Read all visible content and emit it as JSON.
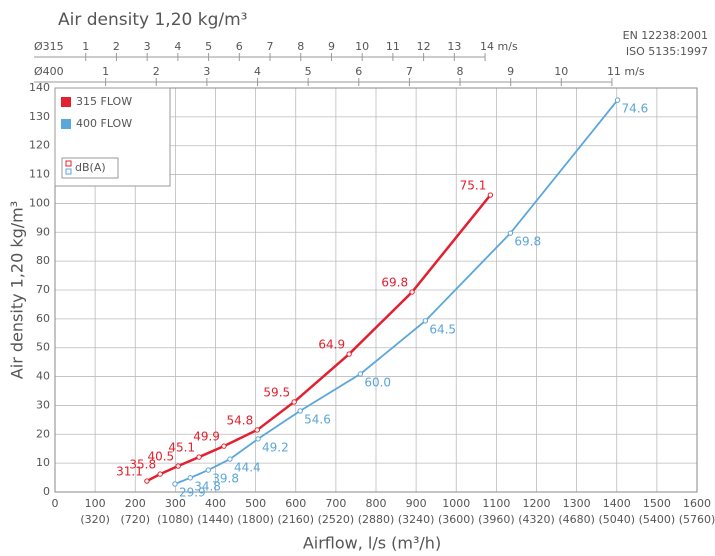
{
  "chart_data": {
    "type": "line",
    "title": "Air density 1,20 kg/m³",
    "standards": [
      "EN 12238:2001",
      "ISO 5135:1997"
    ],
    "ylabel": "Air density 1,20 kg/m³",
    "xlabel": "Airflow, l/s (m³/h)",
    "xlim": [
      0,
      1600
    ],
    "xticks": [
      0,
      100,
      200,
      300,
      400,
      500,
      600,
      700,
      800,
      900,
      1000,
      1100,
      1200,
      1300,
      1400,
      1500,
      1600
    ],
    "xtick_secondary_labels": [
      null,
      "(320)",
      "(720)",
      "(1080)",
      "(1440)",
      "(1800)",
      "(2160)",
      "(2520)",
      "(2880)",
      "(3240)",
      "(3600)",
      "(3960)",
      "(4320)",
      "(4680)",
      "(5040)",
      "(5400)",
      "(5760)"
    ],
    "ylim": [
      0,
      140
    ],
    "yticks": [
      0,
      10,
      20,
      30,
      40,
      50,
      60,
      70,
      80,
      90,
      100,
      110,
      120,
      130,
      140
    ],
    "grid": true,
    "top_axes": [
      {
        "name": "Ø315",
        "xlim": [
          0,
          20.9
        ],
        "ticks": [
          1,
          2,
          3,
          4,
          5,
          6,
          7,
          8,
          9,
          10,
          11,
          12,
          13,
          {
            "value": 14,
            "label": "14 m/s"
          }
        ]
      },
      {
        "name": "Ø400",
        "xlim": [
          0,
          12.68
        ],
        "ticks": [
          1,
          2,
          3,
          4,
          5,
          6,
          7,
          8,
          9,
          10,
          {
            "value": 11,
            "label": "11 m/s"
          }
        ]
      }
    ],
    "db_legend": "dB(A)",
    "series": [
      {
        "name": "315 FLOW",
        "color": "#e3202f",
        "x": [
          229,
          262,
          307,
          359,
          421,
          504,
          596,
          733,
          890,
          1085
        ],
        "values": [
          3.8,
          6.2,
          9.0,
          12.1,
          15.9,
          21.5,
          31.2,
          47.8,
          69.3,
          102.9
        ],
        "db_labels": [
          "31.1",
          "35.8",
          "40.5",
          "45.1",
          "49.9",
          "54.8",
          "59.5",
          "64.9",
          "69.8",
          "75.1"
        ]
      },
      {
        "name": "400 FLOW",
        "color": "#5ba6da",
        "x": [
          299,
          337,
          382,
          436,
          506,
          611,
          761,
          923,
          1135,
          1402
        ],
        "values": [
          2.8,
          4.9,
          7.6,
          11.4,
          18.4,
          28.1,
          40.9,
          59.3,
          89.7,
          135.8
        ],
        "db_labels": [
          "29.9",
          "34.8",
          "39.8",
          "44.4",
          "49.2",
          "54.6",
          "60.0",
          "64.5",
          "69.8",
          "74.6"
        ]
      }
    ]
  }
}
